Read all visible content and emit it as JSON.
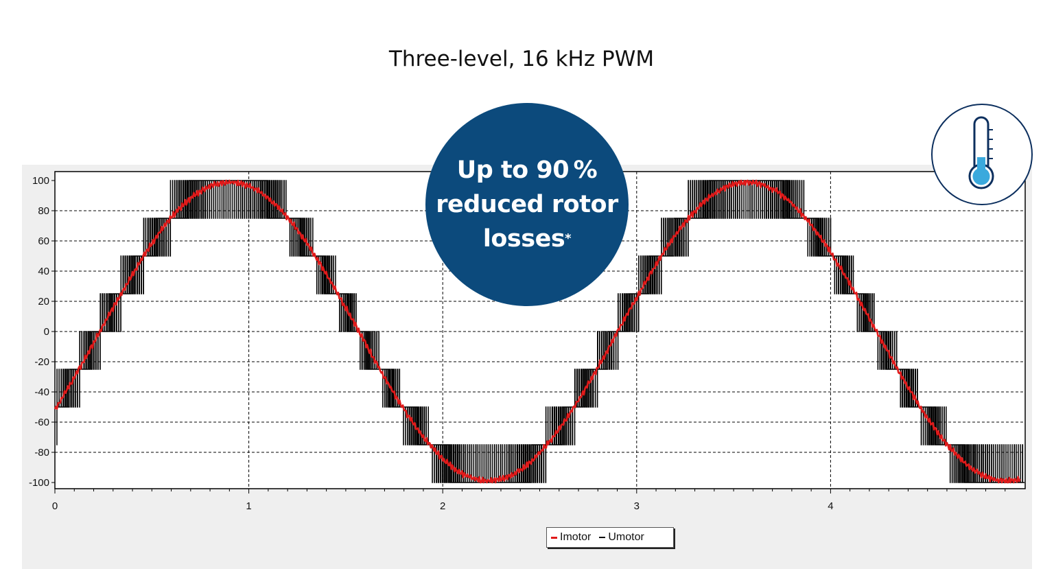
{
  "title": "Three-level, 16 kHz PWM",
  "badge": {
    "line1": "Up to 90 %",
    "line2": "reduced rotor",
    "line3": "losses",
    "footnote_mark": "*"
  },
  "thermometer_icon": "thermometer-cold-icon",
  "colors": {
    "imotor": "#e01a1a",
    "umotor": "#000000",
    "badge_bg": "#0c4a7c",
    "panel_bg": "#efefef",
    "thermo_fill": "#3aa9dd"
  },
  "chart_data": {
    "type": "line",
    "title": "Three-level, 16 kHz PWM",
    "xlabel": "",
    "ylabel": "",
    "xlim": [
      0,
      5
    ],
    "ylim": [
      -100,
      100
    ],
    "x_ticks": [
      "0",
      "1",
      "2",
      "3",
      "4"
    ],
    "y_ticks": [
      "100",
      "80",
      "60",
      "40",
      "20",
      "0",
      "-20",
      "-40",
      "-60",
      "-80",
      "-100"
    ],
    "grid": true,
    "legend": {
      "position": "bottom-center",
      "entries": [
        "Imotor",
        "Umotor"
      ]
    },
    "series": [
      {
        "name": "Imotor",
        "color": "#e01a1a",
        "description_points": {
          "x": [
            0.0,
            0.25,
            0.5,
            0.7,
            0.9,
            1.1,
            1.3,
            1.5,
            1.7,
            1.9,
            2.1,
            2.25,
            2.4,
            2.6,
            2.8,
            3.0,
            3.2,
            3.4,
            3.55,
            3.7,
            3.9,
            4.1,
            4.3,
            4.5,
            4.7,
            4.85,
            5.0
          ],
          "y": [
            -50,
            -5,
            50,
            85,
            99,
            93,
            68,
            30,
            -12,
            -55,
            -85,
            -99,
            -95,
            -75,
            -40,
            15,
            60,
            90,
            99,
            95,
            80,
            45,
            0,
            -45,
            -85,
            -99,
            -94
          ]
        },
        "amplitude": 99,
        "period": 2.67,
        "peak_x": 0.9
      },
      {
        "name": "Umotor",
        "color": "#000000",
        "levels": [
          -100,
          -75,
          -50,
          -25,
          0,
          25,
          50,
          75,
          100
        ],
        "note": "three-level PWM switching between adjacent levels following a sine reference"
      }
    ]
  }
}
